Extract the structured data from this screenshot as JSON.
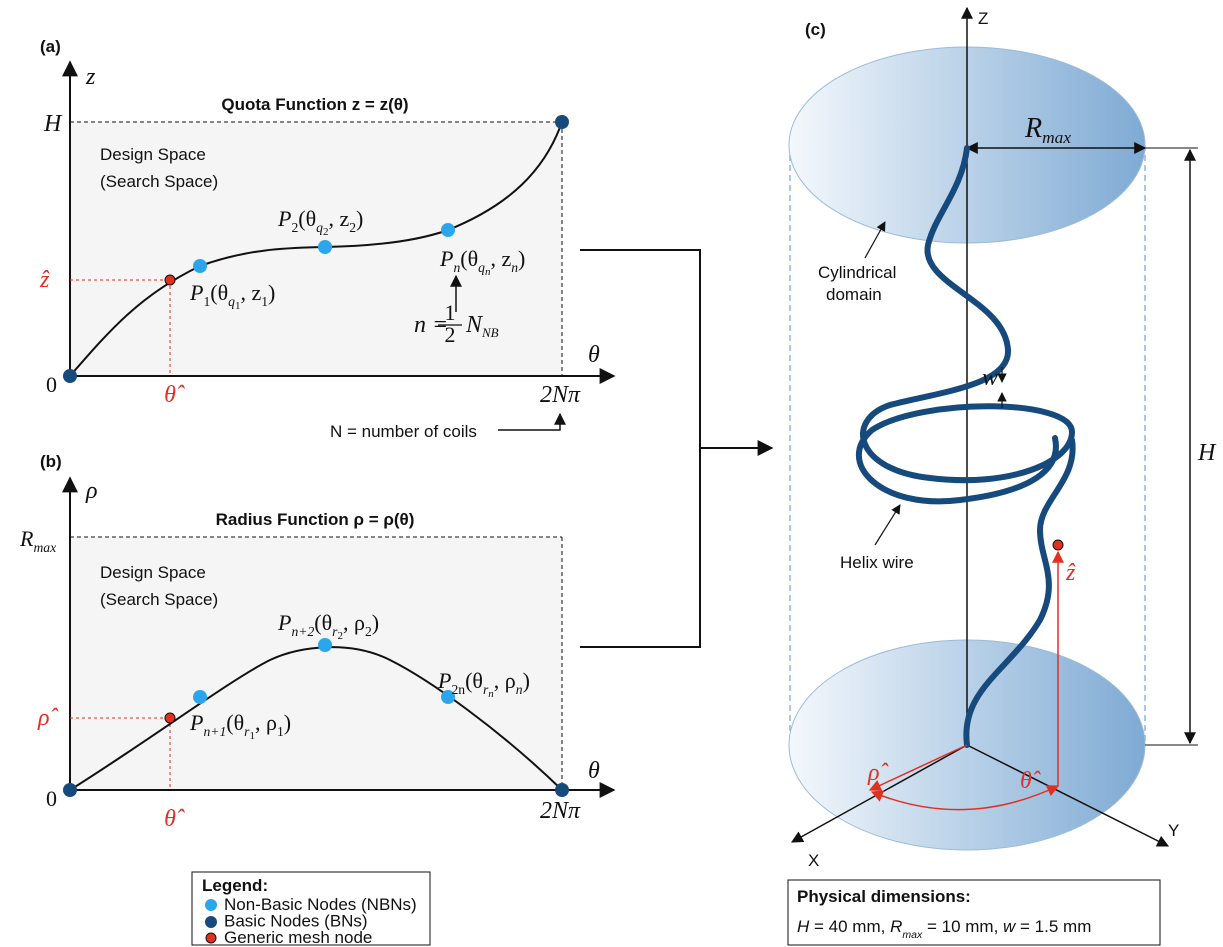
{
  "panel_a": {
    "label": "(a)",
    "y_axis_label": "z",
    "x_axis_label": "θ",
    "origin_label": "0",
    "top_label": "H",
    "end_label": "2Nπ",
    "title": "Quota Function z = z(θ)",
    "design_space": [
      "Design Space",
      "(Search Space)"
    ],
    "hat_y": "ẑ",
    "hat_x": "θ̂",
    "points": [
      [
        "P",
        "1",
        "(θ",
        "q",
        "1",
        ", z",
        "1",
        ")"
      ],
      [
        "P",
        "2",
        "(θ",
        "q",
        "2",
        ", z",
        "2",
        ")"
      ],
      [
        "P",
        "n",
        "(θ",
        "q",
        "n",
        ", z",
        "n",
        ")"
      ]
    ],
    "n_note": [
      "n =",
      "1",
      "2",
      "N",
      "NB"
    ],
    "coils_note": "N = number of coils"
  },
  "panel_b": {
    "label": "(b)",
    "y_axis_label": "ρ",
    "x_axis_label": "θ",
    "origin_label": "0",
    "top_label": [
      "R",
      "max"
    ],
    "end_label": "2Nπ",
    "title": "Radius Function ρ = ρ(θ)",
    "design_space": [
      "Design Space",
      "(Search Space)"
    ],
    "hat_y": "ρ̂",
    "hat_x": "θ̂",
    "points": [
      [
        "P",
        "n+1",
        "(θ",
        "r",
        "1",
        ", ρ",
        "1",
        ")"
      ],
      [
        "P",
        "n+2",
        "(θ",
        "r",
        "2",
        ", ρ",
        "2",
        ")"
      ],
      [
        "P",
        "2n",
        "(θ",
        "r",
        "n",
        ", ρ",
        "n",
        ")"
      ]
    ]
  },
  "panel_c": {
    "label": "(c)",
    "z_axis": "Z",
    "x_axis": "X",
    "y_axis": "Y",
    "rmax": [
      "R",
      "max"
    ],
    "height": "H",
    "width": "w",
    "hat_z": "ẑ",
    "hat_rho": "ρ̂",
    "hat_theta": "θ̂",
    "domain_label": [
      "Cylindrical",
      "domain"
    ],
    "wire_label": "Helix wire"
  },
  "legend": {
    "title": "Legend:",
    "items": [
      "Non-Basic Nodes (NBNs)",
      "Basic Nodes (BNs)",
      "Generic mesh node"
    ]
  },
  "dimensions": {
    "title": "Physical dimensions:",
    "line": [
      "H",
      " = 40 mm, ",
      "R",
      "max",
      " = 10 mm, ",
      "w",
      " = 1.5 mm"
    ]
  }
}
